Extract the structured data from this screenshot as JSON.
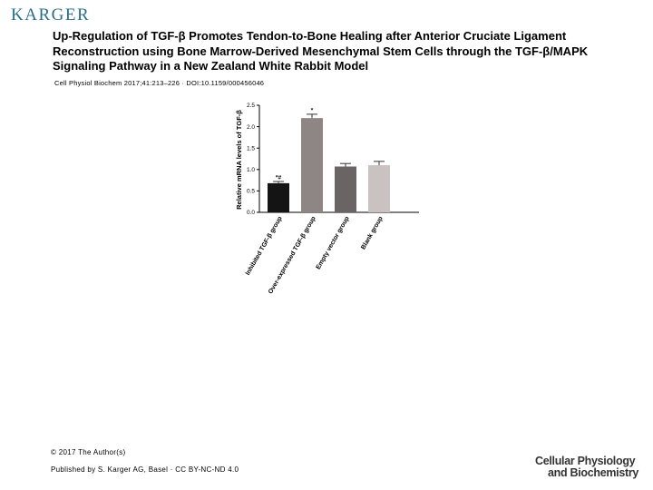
{
  "header": {
    "logo": "KARGER",
    "title": "Up-Regulation of TGF-β Promotes Tendon-to-Bone Healing after Anterior Cruciate Ligament Reconstruction using Bone Marrow-Derived Mesenchymal Stem Cells through the TGF-β/MAPK Signaling Pathway in a New Zealand White Rabbit Model",
    "citation": "Cell Physiol Biochem 2017;41:213–226 · DOI:10.1159/000456046"
  },
  "footer": {
    "copyright": "© 2017 The Author(s)",
    "published": "Published by S. Karger AG, Basel · CC BY-NC-ND 4.0",
    "journal_line1": "Cellular Physiology",
    "journal_line2": "and Biochemistry"
  },
  "colors": {
    "logo": "#2a6f8c",
    "bar_inhibited": "#141414",
    "bar_overexpressed": "#8e8585",
    "bar_empty_vector": "#6b6464",
    "bar_blank": "#c9c2c0"
  },
  "chart_data": {
    "type": "bar",
    "ylabel": "Relative mRNA levels of TGF-β",
    "ylim": [
      0,
      2.5
    ],
    "yticks": [
      "0.0",
      "0.5",
      "1.0",
      "1.5",
      "2.0",
      "2.5"
    ],
    "categories": [
      "Inhibited TGF-β group",
      "Over-expressed TGF-β group",
      "Empty vector group",
      "Blank group"
    ],
    "values": [
      0.68,
      2.2,
      1.07,
      1.1
    ],
    "errors": [
      0.04,
      0.09,
      0.07,
      0.09
    ],
    "annotations": [
      "*#",
      "*",
      "",
      ""
    ],
    "grid": false
  }
}
